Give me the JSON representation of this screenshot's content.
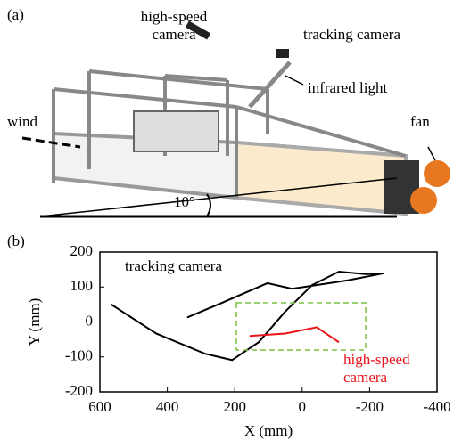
{
  "panel_a": {
    "label": "(a)",
    "high_speed_camera": [
      "high-speed",
      "camera"
    ],
    "tracking_camera": "tracking camera",
    "infrared_light": "infrared light",
    "fan": "fan",
    "wind": "wind",
    "angle": "10°"
  },
  "chart_data": {
    "type": "line",
    "label": "(b)",
    "xlabel": "X (mm)",
    "ylabel": "Y (mm)",
    "xlim": [
      600,
      -400
    ],
    "ylim": [
      -200,
      200
    ],
    "xticks": [
      600,
      400,
      200,
      0,
      -200,
      -400
    ],
    "yticks": [
      200,
      100,
      0,
      -100,
      -200
    ],
    "series": [
      {
        "name": "tracking camera",
        "color": "#000000",
        "x": [
          566,
          433,
          288,
          208,
          129,
          50,
          -30,
          -109,
          -188,
          -241,
          -135,
          30,
          103,
          235,
          341
        ],
        "y": [
          50,
          -33,
          -91,
          -109,
          -58,
          30,
          106,
          144,
          137,
          139,
          119,
          95,
          111,
          56,
          13
        ]
      },
      {
        "name": "high-speed camera",
        "color": "#e8141b",
        "x": [
          156,
          50,
          -43,
          -109
        ],
        "y": [
          -40,
          -33,
          -15,
          -58
        ]
      }
    ]
  }
}
